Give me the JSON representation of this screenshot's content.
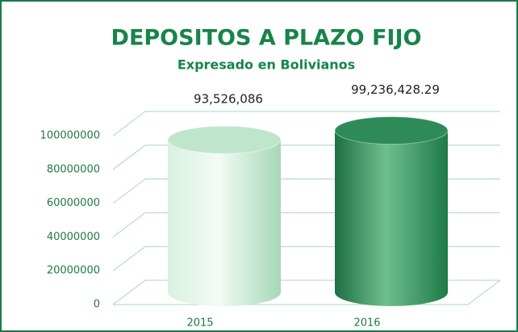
{
  "chart_data": {
    "type": "cylinder",
    "title": "DEPOSITOS A PLAZO FIJO",
    "subtitle": "Expresado en Bolivianos",
    "categories": [
      "2015",
      "2016"
    ],
    "values": [
      93526086,
      99236428.29
    ],
    "value_labels": [
      "93,526,086",
      "99,236,428.29"
    ],
    "colors": [
      "#bfe6cc",
      "#2e8b57"
    ],
    "ylim": [
      0,
      100000000
    ],
    "yticks": [
      0,
      20000000,
      40000000,
      60000000,
      80000000,
      100000000
    ],
    "grid": true
  }
}
